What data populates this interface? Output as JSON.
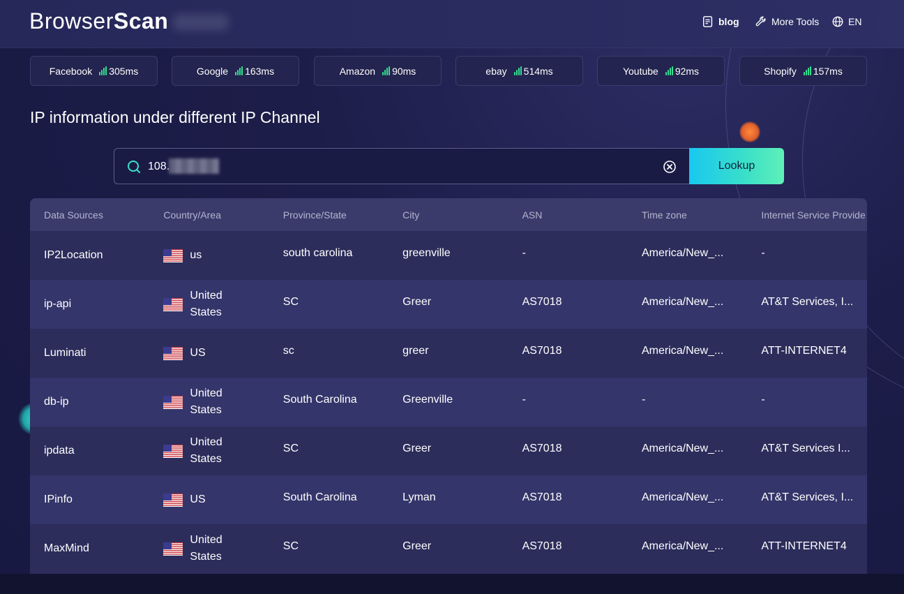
{
  "header": {
    "logo_text_a": "Browser",
    "logo_text_b": "Scan",
    "nav": [
      {
        "label": "blog",
        "icon": "notebook-icon"
      },
      {
        "label": "More Tools",
        "icon": "wrench-icon"
      },
      {
        "label": "EN",
        "icon": "globe-icon"
      }
    ]
  },
  "pings": [
    {
      "site": "Facebook",
      "ms": "305ms"
    },
    {
      "site": "Google",
      "ms": "163ms"
    },
    {
      "site": "Amazon",
      "ms": "90ms"
    },
    {
      "site": "ebay",
      "ms": "514ms"
    },
    {
      "site": "Youtube",
      "ms": "92ms"
    },
    {
      "site": "Shopify",
      "ms": "157ms"
    }
  ],
  "section_title": "IP information under different IP Channel",
  "search": {
    "value": "108.",
    "button_label": "Lookup"
  },
  "table": {
    "columns": [
      "Data Sources",
      "Country/Area",
      "Province/State",
      "City",
      "ASN",
      "Time zone",
      "Internet Service Provide"
    ],
    "rows": [
      [
        "IP2Location",
        "us",
        "south carolina",
        "greenville",
        "-",
        "America/New_...",
        "-"
      ],
      [
        "ip-api",
        "United States",
        "SC",
        "Greer",
        "AS7018",
        "America/New_...",
        "AT&T Services, I..."
      ],
      [
        "Luminati",
        "US",
        "sc",
        "greer",
        "AS7018",
        "America/New_...",
        "ATT-INTERNET4"
      ],
      [
        "db-ip",
        "United States",
        "South Carolina",
        "Greenville",
        "-",
        "-",
        "-"
      ],
      [
        "ipdata",
        "United States",
        "SC",
        "Greer",
        "AS7018",
        "America/New_...",
        "AT&T Services I..."
      ],
      [
        "IPinfo",
        "US",
        "South Carolina",
        "Lyman",
        "AS7018",
        "America/New_...",
        "AT&T Services, I..."
      ],
      [
        "MaxMind",
        "United States",
        "SC",
        "Greer",
        "AS7018",
        "America/New_...",
        "ATT-INTERNET4"
      ]
    ]
  },
  "colors": {
    "accent_gradient_start": "#18c8f0",
    "accent_gradient_end": "#5ef0b8",
    "signal": "#35e08f"
  }
}
